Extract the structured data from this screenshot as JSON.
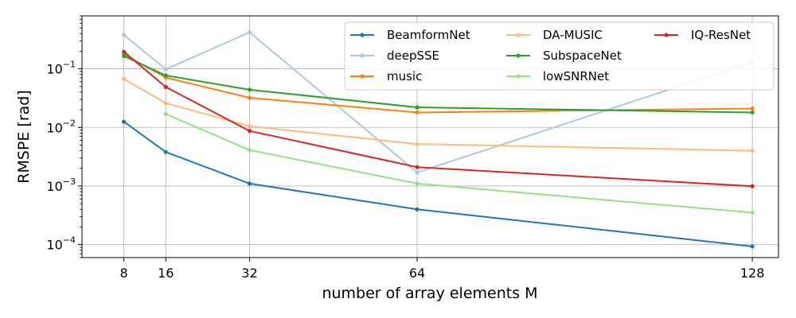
{
  "chart_data": {
    "type": "line",
    "title": "",
    "xlabel": "number of array elements M",
    "ylabel": "RMSPE [rad]",
    "yscale": "log",
    "xlim": [
      0,
      133
    ],
    "ylim": [
      6e-05,
      0.8
    ],
    "x_ticks": [
      8,
      16,
      32,
      64,
      128
    ],
    "x_tick_labels": [
      "8",
      "16",
      "32",
      "64",
      "128"
    ],
    "y_ticks": [
      0.0001,
      0.001,
      0.01,
      0.1
    ],
    "y_tick_labels": [
      {
        "base": "10",
        "exp": "−4"
      },
      {
        "base": "10",
        "exp": "−3"
      },
      {
        "base": "10",
        "exp": "−2"
      },
      {
        "base": "10",
        "exp": "−1"
      }
    ],
    "grid": true,
    "legend_position": "top-right",
    "legend_columns": 3,
    "series": [
      {
        "name": "BeamformNet",
        "color": "#1f77b4",
        "x": [
          8,
          16,
          32,
          64,
          128
        ],
        "values": [
          0.0125,
          0.0038,
          0.0011,
          0.0004,
          9.3e-05
        ]
      },
      {
        "name": "deepSSE",
        "color": "#aec7e8",
        "x": [
          8,
          16,
          32,
          64,
          128
        ],
        "values": [
          0.38,
          0.098,
          0.42,
          0.0017,
          0.13
        ]
      },
      {
        "name": "music",
        "color": "#ff7f0e",
        "x": [
          8,
          16,
          32,
          64,
          128
        ],
        "values": [
          0.175,
          0.071,
          0.032,
          0.018,
          0.021
        ]
      },
      {
        "name": "DA-MUSIC",
        "color": "#ffbb78",
        "x": [
          8,
          16,
          32,
          64,
          128
        ],
        "values": [
          0.067,
          0.026,
          0.0105,
          0.0052,
          0.004
        ]
      },
      {
        "name": "SubspaceNet",
        "color": "#2ca02c",
        "x": [
          8,
          16,
          32,
          64,
          128
        ],
        "values": [
          0.165,
          0.077,
          0.044,
          0.022,
          0.018
        ]
      },
      {
        "name": "lowSNRNet",
        "color": "#98df8a",
        "x": [
          16,
          32,
          64,
          128
        ],
        "values": [
          0.017,
          0.0041,
          0.0011,
          0.00035
        ]
      },
      {
        "name": "IQ-ResNet",
        "color": "#d62728",
        "x": [
          8,
          16,
          32,
          64,
          128
        ],
        "values": [
          0.195,
          0.049,
          0.0087,
          0.0021,
          0.00099
        ]
      }
    ]
  }
}
